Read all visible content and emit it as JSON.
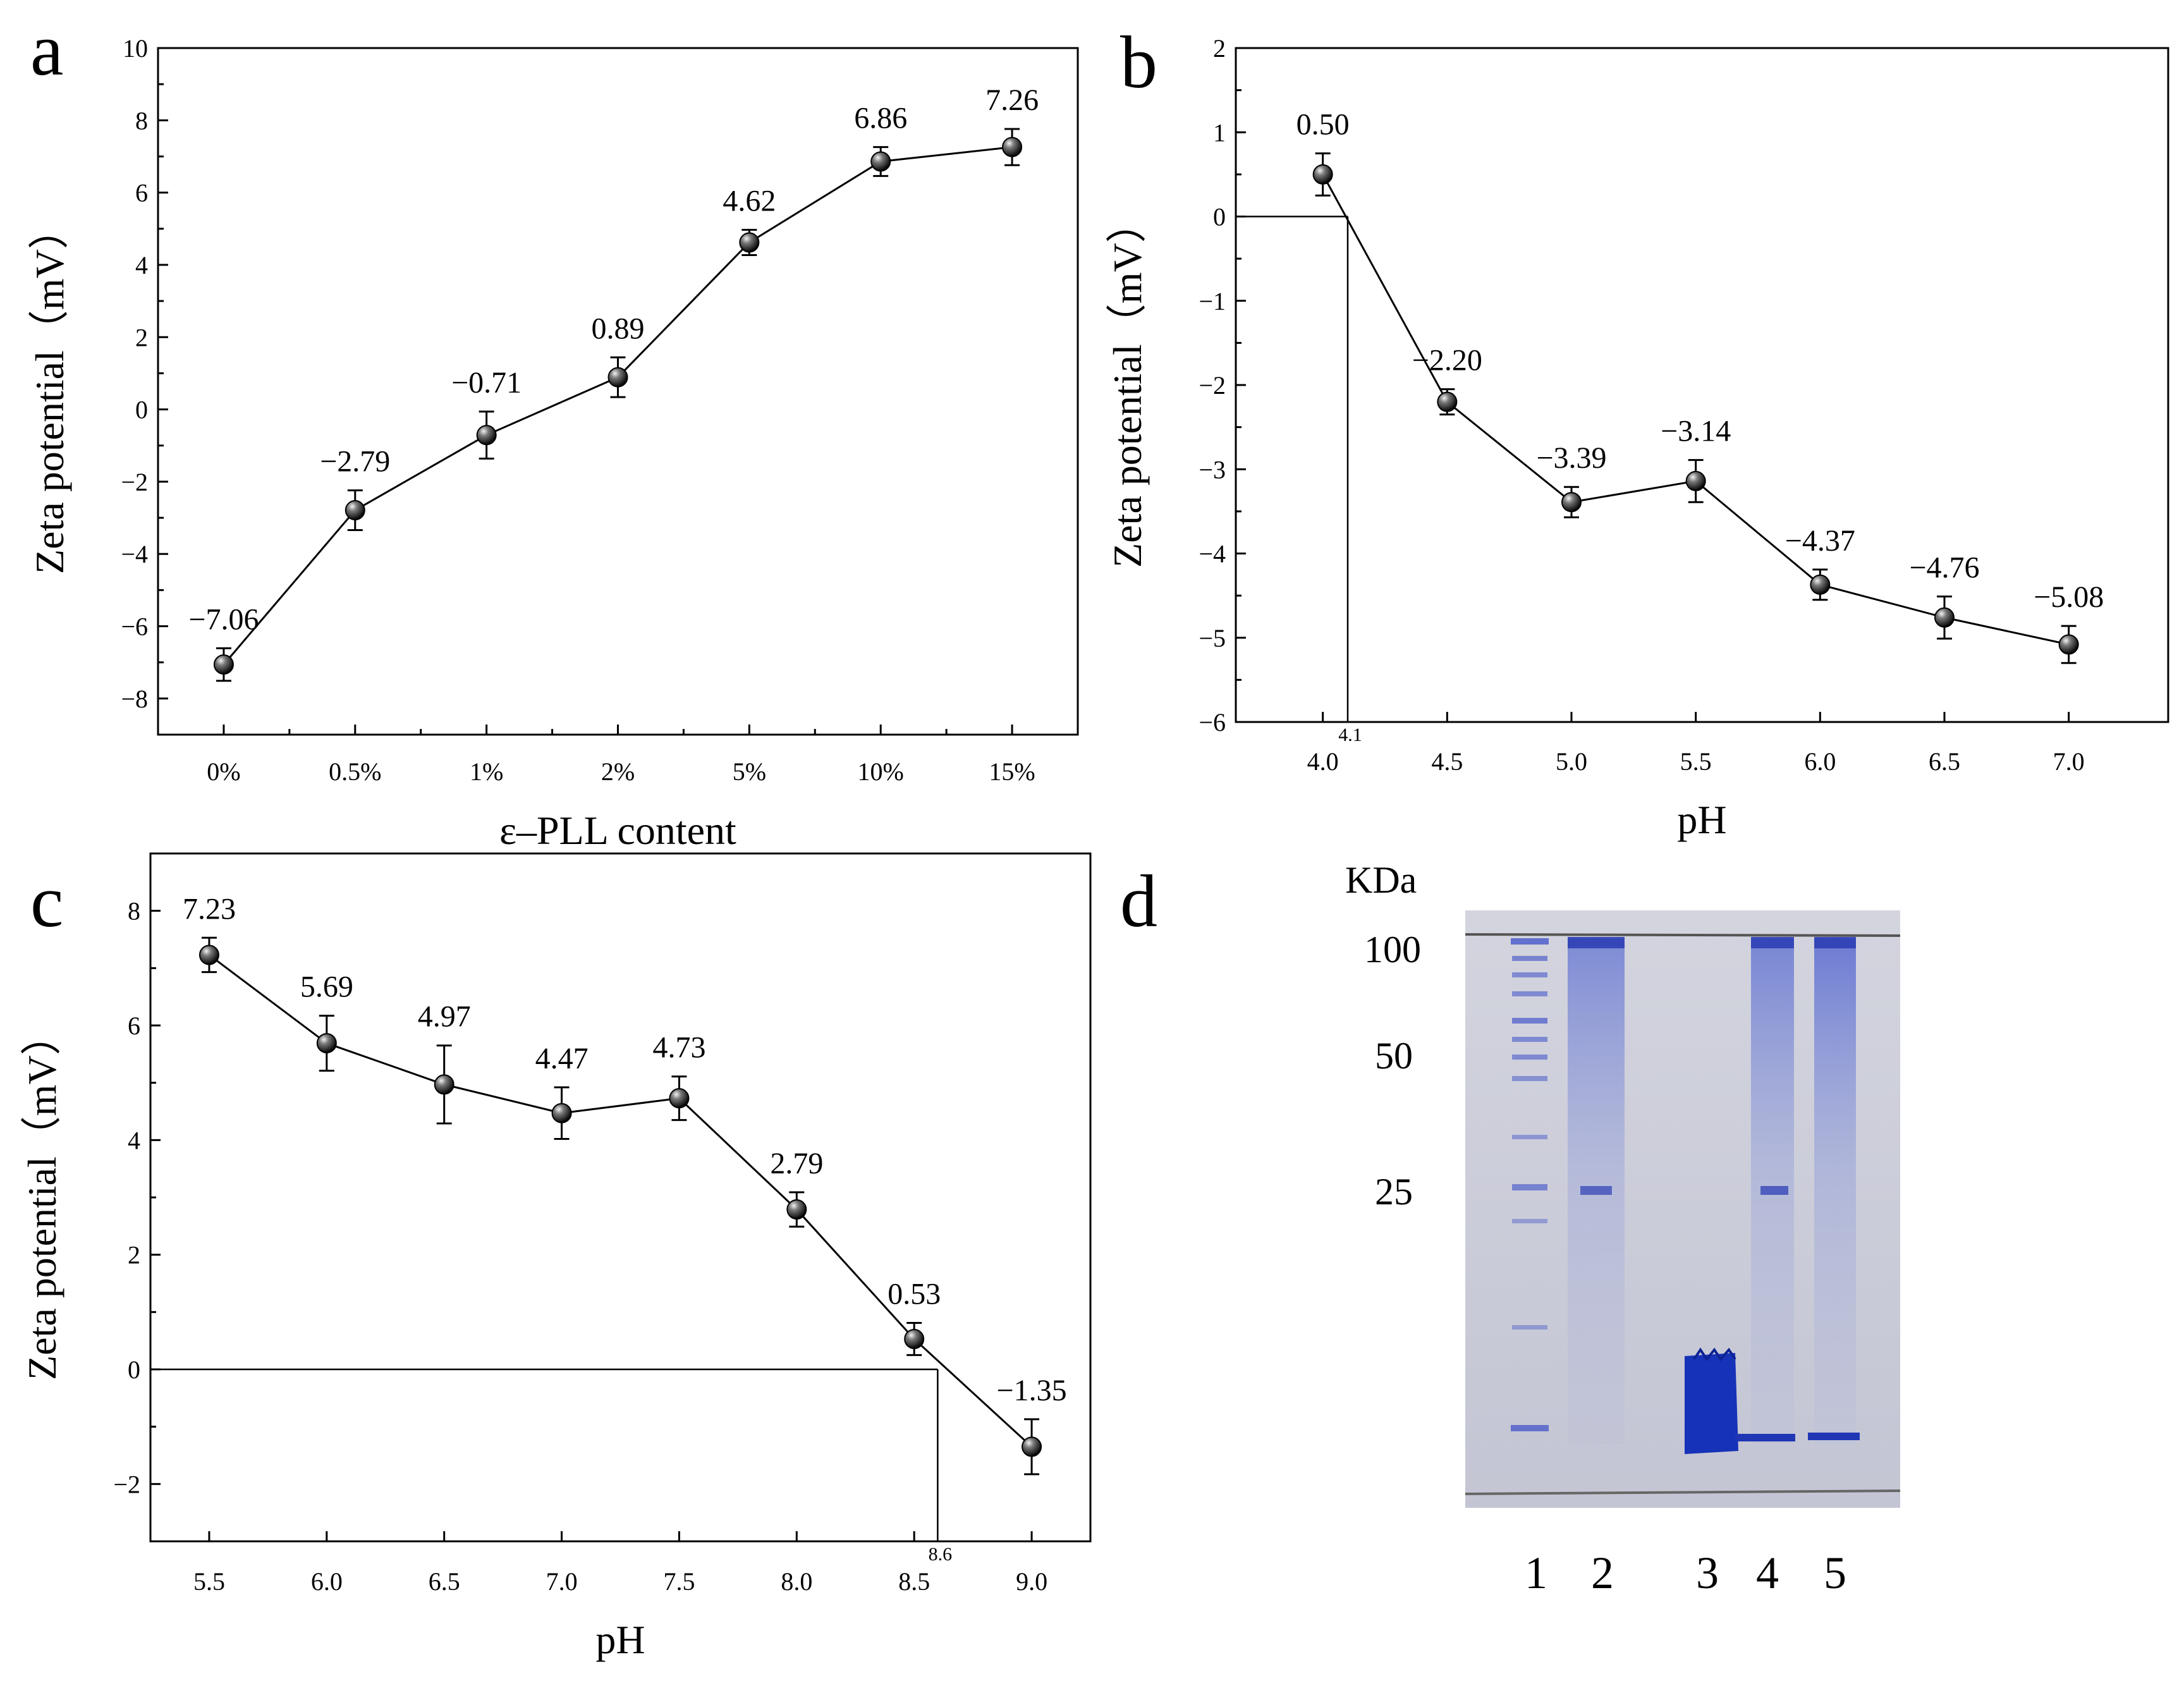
{
  "panels": {
    "a": "a",
    "b": "b",
    "c": "c",
    "d": "d"
  },
  "chart_data": [
    {
      "panel": "a",
      "type": "line",
      "xlabel": "ε–PLL content",
      "ylabel": "Zeta potential（mV）",
      "categories": [
        "0%",
        "0.5%",
        "1%",
        "2%",
        "5%",
        "10%",
        "15%"
      ],
      "values": [
        -7.06,
        -2.79,
        -0.71,
        0.89,
        4.62,
        6.86,
        7.26
      ],
      "errors": [
        0.45,
        0.55,
        0.65,
        0.55,
        0.35,
        0.4,
        0.5
      ],
      "data_labels": [
        "−7.06",
        "−2.79",
        "−0.71",
        "0.89",
        "4.62",
        "6.86",
        "7.26"
      ],
      "ylim": [
        -9,
        10
      ],
      "yticks": [
        -8,
        -6,
        -4,
        -2,
        0,
        2,
        4,
        6,
        8,
        10
      ],
      "ytick_labels": [
        "−8",
        "−6",
        "−4",
        "−2",
        "0",
        "2",
        "4",
        "6",
        "8",
        "10"
      ],
      "grid": false
    },
    {
      "panel": "b",
      "type": "line",
      "xlabel": "pH",
      "ylabel": "Zeta potential（mV）",
      "x": [
        4.0,
        4.5,
        5.0,
        5.5,
        6.0,
        6.5,
        7.0
      ],
      "values": [
        0.5,
        -2.2,
        -3.39,
        -3.14,
        -4.37,
        -4.76,
        -5.08
      ],
      "errors": [
        0.25,
        0.15,
        0.18,
        0.25,
        0.18,
        0.25,
        0.22
      ],
      "data_labels": [
        "0.50",
        "−2.20",
        "−3.39",
        "−3.14",
        "−4.37",
        "−4.76",
        "−5.08"
      ],
      "xlim": [
        3.65,
        7.4
      ],
      "ylim": [
        -6,
        2
      ],
      "xticks": [
        "4.0",
        "4.5",
        "5.0",
        "5.5",
        "6.0",
        "6.5",
        "7.0"
      ],
      "yticks": [
        -6,
        -5,
        -4,
        -3,
        -2,
        -1,
        0,
        1,
        2
      ],
      "ytick_labels": [
        "−6",
        "−5",
        "−4",
        "−3",
        "−2",
        "−1",
        "0",
        "1",
        "2"
      ],
      "isoelectric_point": 4.1,
      "isoelectric_label": "4.1",
      "grid": false
    },
    {
      "panel": "c",
      "type": "line",
      "xlabel": "pH",
      "ylabel": "Zeta potential（mV）",
      "x": [
        5.5,
        6.0,
        6.5,
        7.0,
        7.5,
        8.0,
        8.5,
        9.0
      ],
      "values": [
        7.23,
        5.69,
        4.97,
        4.47,
        4.73,
        2.79,
        0.53,
        -1.35
      ],
      "errors": [
        0.3,
        0.48,
        0.68,
        0.45,
        0.38,
        0.3,
        0.28,
        0.48
      ],
      "data_labels": [
        "7.23",
        "5.69",
        "4.97",
        "4.47",
        "4.73",
        "2.79",
        "0.53",
        "−1.35"
      ],
      "xlim": [
        5.25,
        9.25
      ],
      "ylim": [
        -3,
        9
      ],
      "xticks": [
        "5.5",
        "6.0",
        "6.5",
        "7.0",
        "7.5",
        "8.0",
        "8.5",
        "9.0"
      ],
      "yticks": [
        -2,
        0,
        2,
        4,
        6,
        8
      ],
      "ytick_labels": [
        "−2",
        "0",
        "2",
        "4",
        "6",
        "8"
      ],
      "isoelectric_point": 8.6,
      "isoelectric_label": "8.6",
      "grid": false
    }
  ],
  "gel": {
    "unit_label": "KDa",
    "marker_labels": [
      "100",
      "50",
      "25"
    ],
    "lane_labels": [
      "1",
      "2",
      "3",
      "4",
      "5"
    ],
    "colors": {
      "background": "#c8cad8",
      "band": "#2d3fb5",
      "dark_band": "#1632b8"
    }
  }
}
